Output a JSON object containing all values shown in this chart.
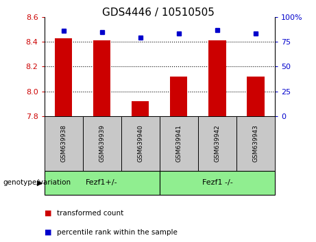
{
  "title": "GDS4446 / 10510505",
  "samples": [
    "GSM639938",
    "GSM639939",
    "GSM639940",
    "GSM639941",
    "GSM639942",
    "GSM639943"
  ],
  "transformed_counts": [
    8.43,
    8.41,
    7.92,
    8.12,
    8.41,
    8.12
  ],
  "percentile_ranks": [
    86,
    85,
    79,
    83,
    87,
    83
  ],
  "ylim_left": [
    7.8,
    8.6
  ],
  "ylim_right": [
    0,
    100
  ],
  "yticks_left": [
    7.8,
    8.0,
    8.2,
    8.4,
    8.6
  ],
  "yticks_right": [
    0,
    25,
    50,
    75,
    100
  ],
  "grid_values": [
    8.0,
    8.2,
    8.4
  ],
  "bar_color": "#cc0000",
  "dot_color": "#0000cc",
  "bar_width": 0.45,
  "group1_label": "Fezf1+/-",
  "group2_label": "Fezf1 -/-",
  "xlabel_group": "genotype/variation",
  "legend_red_label": "transformed count",
  "legend_blue_label": "percentile rank within the sample",
  "title_fontsize": 11,
  "right_axis_color": "#0000cc",
  "left_axis_color": "#cc0000",
  "background_plot": "#ffffff",
  "background_label": "#c8c8c8",
  "background_group": "#90ee90"
}
